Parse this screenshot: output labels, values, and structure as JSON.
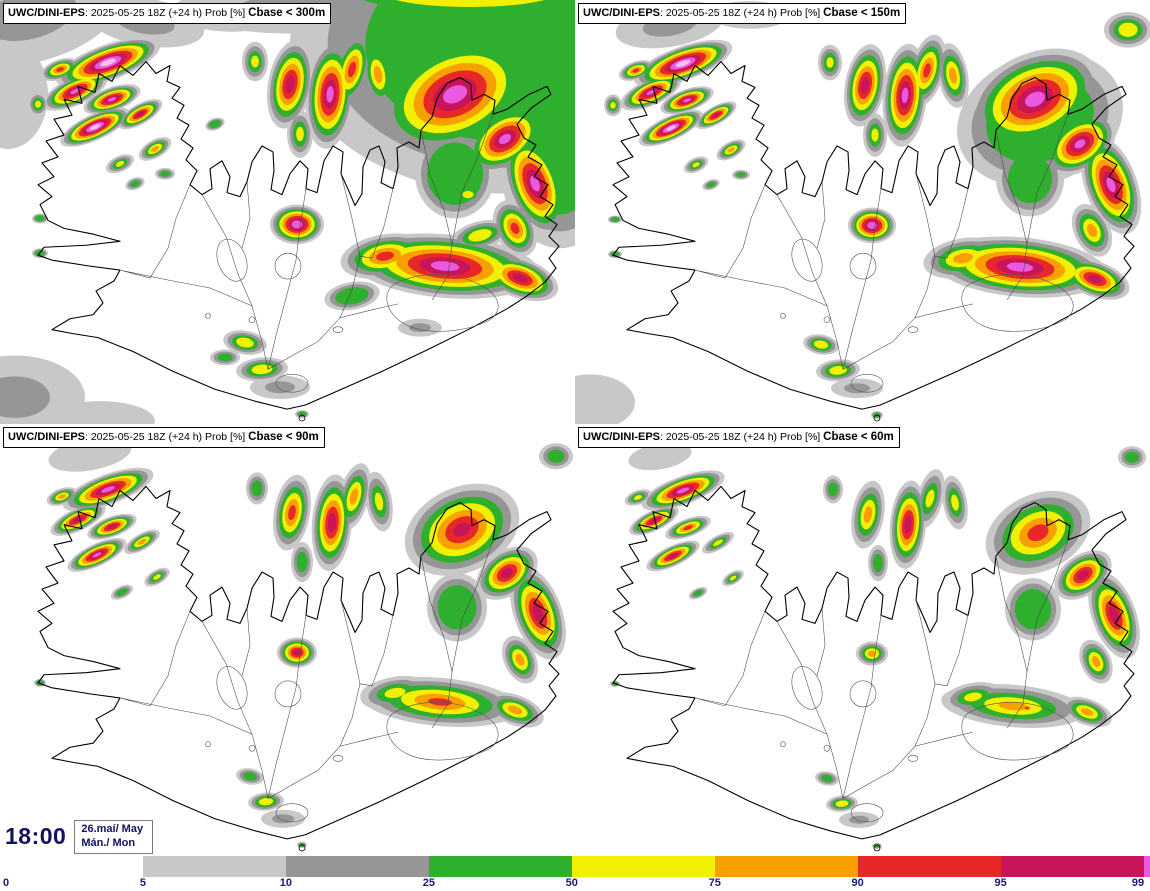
{
  "panels": [
    {
      "model": "UWC/DINI-EPS",
      "run_info": ": 2025-05-25 18Z (+24 h) Prob [%] ",
      "threshold": "Cbase < 300m",
      "blobs": [
        [
          30,
          15,
          95,
          48,
          -15,
          1,
          0.5
        ],
        [
          145,
          22,
          60,
          24,
          10,
          1,
          0.5
        ],
        [
          232,
          14,
          52,
          18,
          0,
          0,
          0.5
        ],
        [
          8,
          95,
          40,
          55,
          0,
          0,
          0.5
        ],
        [
          300,
          8,
          125,
          26,
          0,
          1,
          0.5
        ],
        [
          390,
          55,
          85,
          95,
          15,
          1,
          0.5
        ],
        [
          505,
          45,
          215,
          150,
          0,
          2,
          0.35
        ],
        [
          470,
          -8,
          175,
          30,
          0,
          3,
          0.5
        ],
        [
          560,
          165,
          60,
          85,
          0,
          2,
          0.4
        ],
        [
          455,
          175,
          40,
          45,
          0,
          2,
          0.3
        ],
        [
          468,
          196,
          14,
          9,
          0,
          3,
          0.6
        ],
        [
          455,
          95,
          85,
          55,
          -25,
          7,
          0.85
        ],
        [
          505,
          140,
          45,
          28,
          -35,
          7,
          0.85
        ],
        [
          290,
          85,
          22,
          45,
          10,
          6,
          0.8
        ],
        [
          330,
          95,
          24,
          55,
          5,
          7,
          0.85
        ],
        [
          352,
          70,
          18,
          40,
          15,
          5,
          0.8
        ],
        [
          378,
          75,
          16,
          35,
          -10,
          4,
          0.75
        ],
        [
          300,
          135,
          13,
          24,
          0,
          3,
          0.7
        ],
        [
          255,
          62,
          13,
          20,
          0,
          3,
          0.7
        ],
        [
          108,
          63,
          55,
          18,
          -20,
          8,
          0.85
        ],
        [
          75,
          92,
          35,
          14,
          -25,
          7,
          0.85
        ],
        [
          112,
          100,
          30,
          12,
          -20,
          7,
          0.85
        ],
        [
          95,
          128,
          38,
          13,
          -25,
          8,
          0.85
        ],
        [
          140,
          115,
          25,
          10,
          -30,
          6,
          0.8
        ],
        [
          60,
          70,
          20,
          10,
          -20,
          5,
          0.8
        ],
        [
          155,
          150,
          18,
          9,
          -30,
          4,
          0.75
        ],
        [
          120,
          165,
          15,
          8,
          -25,
          3,
          0.7
        ],
        [
          135,
          185,
          10,
          6,
          -20,
          2,
          0.5
        ],
        [
          165,
          175,
          10,
          6,
          0,
          2,
          0.5
        ],
        [
          38,
          105,
          10,
          12,
          0,
          3,
          0.7
        ],
        [
          215,
          125,
          10,
          6,
          -20,
          2,
          0.4
        ],
        [
          40,
          220,
          8,
          5,
          0,
          2,
          0.4
        ],
        [
          40,
          255,
          8,
          5,
          0,
          2,
          0.4
        ],
        [
          297,
          226,
          27,
          20,
          0,
          7,
          0.8
        ],
        [
          445,
          268,
          95,
          32,
          5,
          7,
          0.85
        ],
        [
          385,
          258,
          45,
          22,
          -10,
          5,
          0.8
        ],
        [
          520,
          280,
          40,
          20,
          20,
          6,
          0.8
        ],
        [
          352,
          298,
          28,
          14,
          -10,
          2,
          0.4
        ],
        [
          480,
          237,
          30,
          14,
          -15,
          3,
          0.6
        ],
        [
          535,
          185,
          28,
          55,
          -20,
          7,
          0.85
        ],
        [
          515,
          230,
          20,
          30,
          -25,
          5,
          0.8
        ],
        [
          245,
          345,
          22,
          12,
          10,
          3,
          0.6
        ],
        [
          262,
          372,
          26,
          12,
          -5,
          3,
          0.6
        ],
        [
          225,
          360,
          15,
          8,
          0,
          2,
          0.5
        ],
        [
          280,
          390,
          30,
          12,
          0,
          1,
          0.5
        ],
        [
          302,
          417,
          7,
          4,
          0,
          2,
          0.4
        ],
        [
          15,
          400,
          70,
          42,
          0,
          1,
          0.5
        ],
        [
          100,
          424,
          55,
          20,
          0,
          0,
          0.5
        ],
        [
          420,
          330,
          22,
          9,
          0,
          1,
          0.5
        ]
      ]
    },
    {
      "model": "UWC/DINI-EPS",
      "run_info": ": 2025-05-25 18Z (+24 h) Prob [%] ",
      "threshold": "Cbase < 150m",
      "blobs": [
        [
          95,
          25,
          55,
          22,
          -10,
          1,
          0.5
        ],
        [
          175,
          15,
          40,
          14,
          0,
          0,
          0.5
        ],
        [
          553,
          30,
          24,
          18,
          0,
          3,
          0.6
        ],
        [
          465,
          120,
          85,
          65,
          -20,
          2,
          0.35
        ],
        [
          460,
          100,
          70,
          46,
          -25,
          7,
          0.85
        ],
        [
          505,
          145,
          40,
          26,
          -35,
          7,
          0.85
        ],
        [
          290,
          86,
          20,
          42,
          10,
          6,
          0.8
        ],
        [
          330,
          96,
          22,
          52,
          5,
          7,
          0.85
        ],
        [
          352,
          71,
          17,
          37,
          15,
          5,
          0.8
        ],
        [
          378,
          76,
          15,
          33,
          -10,
          4,
          0.75
        ],
        [
          300,
          136,
          12,
          22,
          0,
          3,
          0.7
        ],
        [
          255,
          63,
          12,
          18,
          0,
          3,
          0.7
        ],
        [
          108,
          64,
          52,
          17,
          -20,
          8,
          0.85
        ],
        [
          76,
          93,
          33,
          13,
          -25,
          7,
          0.85
        ],
        [
          112,
          101,
          28,
          11,
          -20,
          7,
          0.85
        ],
        [
          96,
          129,
          35,
          12,
          -25,
          8,
          0.85
        ],
        [
          141,
          116,
          23,
          9,
          -30,
          6,
          0.8
        ],
        [
          61,
          71,
          18,
          9,
          -20,
          5,
          0.8
        ],
        [
          156,
          151,
          16,
          8,
          -30,
          4,
          0.75
        ],
        [
          121,
          166,
          13,
          7,
          -25,
          3,
          0.7
        ],
        [
          136,
          186,
          9,
          5,
          -20,
          2,
          0.5
        ],
        [
          166,
          176,
          9,
          5,
          0,
          2,
          0.5
        ],
        [
          38,
          106,
          9,
          11,
          0,
          3,
          0.7
        ],
        [
          40,
          221,
          7,
          4,
          0,
          2,
          0.4
        ],
        [
          40,
          256,
          7,
          4,
          0,
          2,
          0.4
        ],
        [
          297,
          227,
          24,
          18,
          0,
          7,
          0.8
        ],
        [
          445,
          269,
          88,
          30,
          5,
          7,
          0.85
        ],
        [
          388,
          260,
          40,
          20,
          -10,
          4,
          0.75
        ],
        [
          520,
          281,
          36,
          18,
          20,
          6,
          0.8
        ],
        [
          455,
          180,
          34,
          38,
          0,
          2,
          0.35
        ],
        [
          536,
          186,
          26,
          52,
          -20,
          7,
          0.85
        ],
        [
          517,
          232,
          18,
          28,
          -25,
          4,
          0.75
        ],
        [
          246,
          347,
          18,
          10,
          10,
          3,
          0.6
        ],
        [
          263,
          373,
          22,
          11,
          -5,
          3,
          0.6
        ],
        [
          282,
          391,
          26,
          10,
          0,
          1,
          0.5
        ],
        [
          302,
          418,
          6,
          4,
          0,
          2,
          0.4
        ],
        [
          15,
          405,
          45,
          28,
          0,
          0,
          0.5
        ]
      ]
    },
    {
      "model": "UWC/DINI-EPS",
      "run_info": ": 2025-05-25 18Z (+24 h) Prob [%] ",
      "threshold": "Cbase < 90m",
      "blobs": [
        [
          90,
          30,
          42,
          16,
          -10,
          0,
          0.5
        ],
        [
          108,
          65,
          48,
          15,
          -20,
          7,
          0.85
        ],
        [
          78,
          95,
          30,
          11,
          -25,
          6,
          0.8
        ],
        [
          112,
          102,
          26,
          10,
          -20,
          6,
          0.8
        ],
        [
          97,
          130,
          32,
          11,
          -25,
          7,
          0.85
        ],
        [
          142,
          117,
          20,
          8,
          -30,
          4,
          0.75
        ],
        [
          62,
          72,
          16,
          8,
          -20,
          4,
          0.75
        ],
        [
          157,
          152,
          14,
          7,
          -30,
          3,
          0.7
        ],
        [
          122,
          167,
          12,
          6,
          -25,
          2,
          0.5
        ],
        [
          40,
          257,
          6,
          4,
          0,
          2,
          0.4
        ],
        [
          292,
          88,
          18,
          38,
          10,
          5,
          0.8
        ],
        [
          332,
          98,
          20,
          48,
          5,
          6,
          0.8
        ],
        [
          354,
          72,
          15,
          34,
          15,
          4,
          0.75
        ],
        [
          379,
          77,
          13,
          30,
          -10,
          3,
          0.7
        ],
        [
          302,
          137,
          11,
          20,
          0,
          2,
          0.5
        ],
        [
          257,
          64,
          11,
          16,
          0,
          2,
          0.5
        ],
        [
          462,
          105,
          60,
          42,
          -25,
          6,
          0.85
        ],
        [
          507,
          148,
          34,
          22,
          -35,
          6,
          0.8
        ],
        [
          556,
          32,
          17,
          13,
          0,
          2,
          0.5
        ],
        [
          457,
          182,
          30,
          34,
          0,
          2,
          0.35
        ],
        [
          297,
          227,
          20,
          15,
          0,
          6,
          0.8
        ],
        [
          440,
          276,
          80,
          24,
          5,
          5,
          0.85
        ],
        [
          395,
          267,
          35,
          16,
          -10,
          3,
          0.7
        ],
        [
          515,
          284,
          30,
          15,
          20,
          4,
          0.75
        ],
        [
          538,
          188,
          24,
          48,
          -20,
          6,
          0.8
        ],
        [
          520,
          234,
          16,
          25,
          -25,
          4,
          0.75
        ],
        [
          250,
          350,
          14,
          8,
          10,
          2,
          0.5
        ],
        [
          266,
          375,
          18,
          9,
          -5,
          3,
          0.6
        ],
        [
          283,
          392,
          22,
          9,
          0,
          1,
          0.5
        ],
        [
          302,
          418,
          5,
          3,
          0,
          2,
          0.4
        ]
      ]
    },
    {
      "model": "UWC/DINI-EPS",
      "run_info": ": 2025-05-25 18Z (+24 h) Prob [%] ",
      "threshold": "Cbase < 60m",
      "blobs": [
        [
          85,
          32,
          32,
          13,
          -10,
          0,
          0.5
        ],
        [
          108,
          66,
          44,
          14,
          -20,
          7,
          0.85
        ],
        [
          79,
          96,
          27,
          10,
          -25,
          6,
          0.8
        ],
        [
          113,
          103,
          24,
          9,
          -20,
          5,
          0.8
        ],
        [
          98,
          131,
          29,
          10,
          -25,
          6,
          0.8
        ],
        [
          143,
          118,
          18,
          7,
          -30,
          3,
          0.7
        ],
        [
          63,
          73,
          14,
          7,
          -20,
          3,
          0.7
        ],
        [
          158,
          153,
          12,
          6,
          -30,
          3,
          0.7
        ],
        [
          123,
          168,
          10,
          5,
          -25,
          2,
          0.5
        ],
        [
          40,
          258,
          5,
          3,
          0,
          2,
          0.4
        ],
        [
          293,
          90,
          16,
          34,
          10,
          4,
          0.75
        ],
        [
          333,
          100,
          18,
          44,
          5,
          6,
          0.8
        ],
        [
          355,
          74,
          13,
          30,
          15,
          3,
          0.7
        ],
        [
          380,
          78,
          12,
          27,
          -10,
          3,
          0.7
        ],
        [
          303,
          138,
          10,
          18,
          0,
          2,
          0.5
        ],
        [
          258,
          65,
          10,
          14,
          0,
          2,
          0.5
        ],
        [
          463,
          108,
          55,
          38,
          -25,
          5,
          0.8
        ],
        [
          508,
          150,
          32,
          20,
          -35,
          6,
          0.8
        ],
        [
          557,
          33,
          14,
          11,
          0,
          2,
          0.5
        ],
        [
          458,
          184,
          28,
          31,
          0,
          2,
          0.35
        ],
        [
          297,
          228,
          16,
          12,
          0,
          4,
          0.75
        ],
        [
          438,
          280,
          72,
          21,
          5,
          4,
          0.8
        ],
        [
          398,
          271,
          30,
          14,
          -10,
          3,
          0.7
        ],
        [
          452,
          282,
          10,
          6,
          0,
          5,
          0.8
        ],
        [
          512,
          286,
          26,
          13,
          20,
          4,
          0.75
        ],
        [
          539,
          190,
          22,
          45,
          -20,
          6,
          0.8
        ],
        [
          521,
          236,
          15,
          23,
          -25,
          4,
          0.75
        ],
        [
          252,
          352,
          12,
          7,
          10,
          2,
          0.5
        ],
        [
          267,
          377,
          16,
          8,
          -5,
          3,
          0.6
        ],
        [
          284,
          393,
          20,
          8,
          0,
          1,
          0.5
        ],
        [
          302,
          419,
          5,
          3,
          0,
          2,
          0.4
        ]
      ]
    }
  ],
  "footer": {
    "time": "18:00",
    "date": "26.maí/ May",
    "day": "Mán./ Mon"
  },
  "scale_colors": [
    "#c8c8c8",
    "#969696",
    "#2eb02e",
    "#f0f000",
    "#f8a000",
    "#e82828",
    "#c81458",
    "#ea5ae0",
    "#f7c0ef"
  ],
  "colorbar": {
    "ticks": [
      "0",
      "5",
      "10",
      "25",
      "50",
      "75",
      "90",
      "95",
      "99"
    ],
    "segments": [
      {
        "color": "#ffffff",
        "w": 12.43
      },
      {
        "color": "#c8c8c8",
        "w": 12.43
      },
      {
        "color": "#969696",
        "w": 12.43
      },
      {
        "color": "#2eb02e",
        "w": 12.43
      },
      {
        "color": "#f0f000",
        "w": 12.43
      },
      {
        "color": "#f8a000",
        "w": 12.43
      },
      {
        "color": "#e82828",
        "w": 12.43
      },
      {
        "color": "#c81458",
        "w": 12.43
      },
      {
        "color": "#ea5ae0",
        "w": 0.56
      }
    ]
  }
}
